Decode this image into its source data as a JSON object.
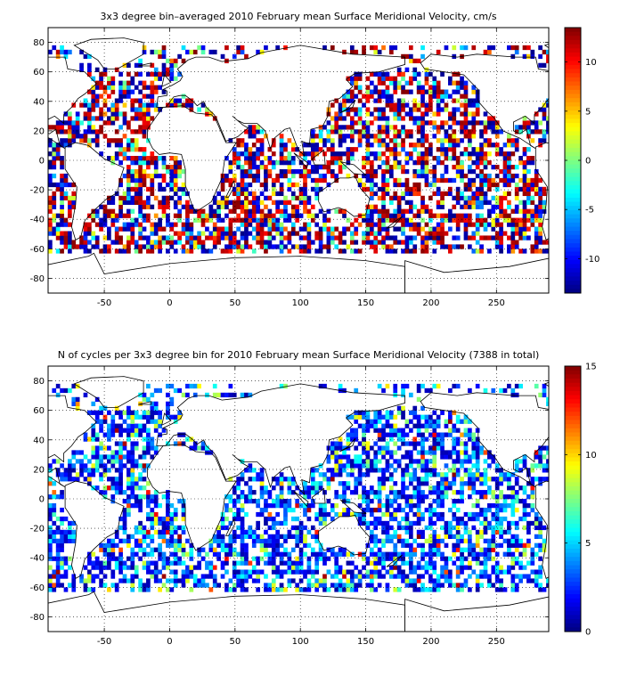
{
  "chart_data": [
    {
      "type": "heatmap",
      "title": "3x3 degree bin–averaged 2010 February mean Surface Meridional Velocity, cm/s",
      "xlabel": "",
      "ylabel": "",
      "xlim": [
        -93,
        290
      ],
      "ylim": [
        -90,
        90
      ],
      "xticks": [
        "-50",
        "0",
        "50",
        "100",
        "150",
        "200",
        "250"
      ],
      "yticks": [
        "80",
        "60",
        "40",
        "20",
        "0",
        "-20",
        "-40",
        "-60",
        "-80"
      ],
      "grid": true,
      "colorbar": {
        "range": [
          -13.5,
          13.5
        ],
        "ticks": [
          "10",
          "5",
          "0",
          "-5",
          "-10"
        ],
        "colormap": "jet"
      },
      "bin_size_deg": 3,
      "value_pattern": "alternating-strong-positive-negative"
    },
    {
      "type": "heatmap",
      "title": "N of cycles per 3x3 degree bin for 2010 February mean Surface Meridional Velocity (7388 in total)",
      "xlabel": "",
      "ylabel": "",
      "xlim": [
        -93,
        290
      ],
      "ylim": [
        -90,
        90
      ],
      "xticks": [
        "-50",
        "0",
        "50",
        "100",
        "150",
        "200",
        "250"
      ],
      "yticks": [
        "80",
        "60",
        "40",
        "20",
        "0",
        "-20",
        "-40",
        "-60",
        "-80"
      ],
      "grid": true,
      "colorbar": {
        "range": [
          0,
          15
        ],
        "ticks": [
          "15",
          "10",
          "5",
          "0"
        ],
        "colormap": "jet"
      },
      "bin_size_deg": 3,
      "total_cycles": 7388,
      "value_pattern": "mostly-low-counts"
    }
  ]
}
